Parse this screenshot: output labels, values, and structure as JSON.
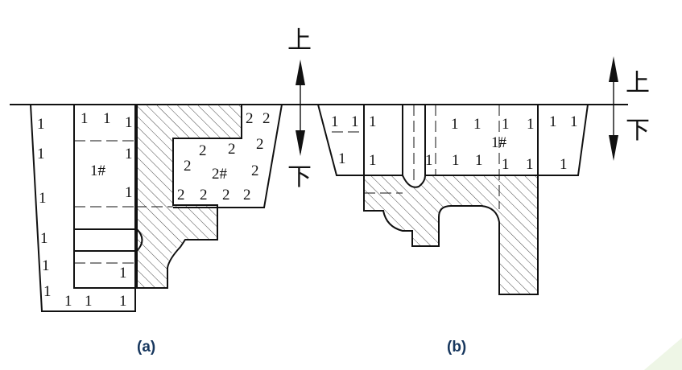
{
  "direction_labels": {
    "up": "上",
    "down": "下"
  },
  "captions": {
    "a": "(a)",
    "b": "(b)"
  },
  "part_a": {
    "outer_block_marks": [
      "1",
      "1",
      "1",
      "1",
      "1",
      "1",
      "1",
      "1",
      "1",
      "1",
      "1",
      "1"
    ],
    "core1_label": "1#",
    "core2_marks": [
      "2",
      "2",
      "2",
      "2",
      "2",
      "2",
      "2",
      "2",
      "2",
      "2",
      "2",
      "2"
    ],
    "core2_label": "2#"
  },
  "part_b": {
    "marks": [
      "1",
      "1",
      "1",
      "1",
      "1",
      "1",
      "1",
      "1",
      "1",
      "1",
      "1",
      "1",
      "1",
      "1",
      "1",
      "1",
      "1",
      "1",
      "1",
      "1"
    ],
    "core_label": "1#"
  }
}
